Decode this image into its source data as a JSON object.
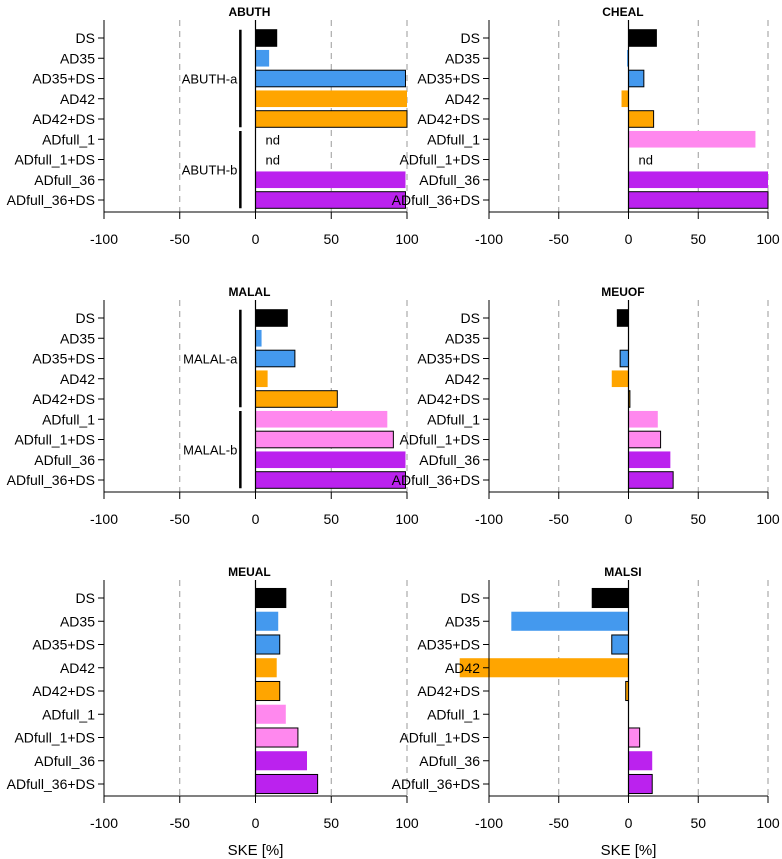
{
  "chart_data": {
    "type": "bar",
    "orientation": "horizontal",
    "xlabel": "SKE [%]",
    "xlim_left": [
      -100,
      100
    ],
    "xlim_right": [
      -100,
      100
    ],
    "xticks": [
      -100,
      -50,
      0,
      50,
      100
    ],
    "xtick_labels": [
      "-100",
      "-50",
      "0",
      "50",
      "100"
    ],
    "grid": "dashed vertical lines at -100, -50, 50, 100",
    "colors": {
      "DS": "#000000",
      "AD35": "#4499ee",
      "AD35+DS": "#4499ee",
      "AD42": "#ffa500",
      "AD42+DS": "#ffa500",
      "ADfull_1": "#ff88ee",
      "ADfull_1+DS": "#ff88ee",
      "ADfull_36": "#bb22ee",
      "ADfull_36+DS": "#bb22ee"
    },
    "categories": [
      "DS",
      "AD35",
      "AD35+DS",
      "AD42",
      "AD42+DS",
      "ADfull_1",
      "ADfull_1+DS",
      "ADfull_36",
      "ADfull_36+DS"
    ],
    "panels": [
      {
        "title": "ABUTH",
        "values": [
          14,
          9,
          99,
          100,
          100,
          null,
          null,
          99,
          99
        ],
        "bar_labels": [
          null,
          null,
          null,
          null,
          null,
          "nd",
          "nd",
          null,
          null
        ],
        "brackets": [
          {
            "label": "ABUTH-a",
            "from": 0,
            "to": 4
          },
          {
            "label": "ABUTH-b",
            "from": 5,
            "to": 8
          }
        ]
      },
      {
        "title": "CHEAL",
        "values": [
          20,
          -1,
          11,
          -5,
          18,
          91,
          null,
          100,
          100
        ],
        "bar_labels": [
          null,
          null,
          null,
          null,
          null,
          null,
          "nd",
          null,
          null
        ],
        "brackets": []
      },
      {
        "title": "MALAL",
        "values": [
          21,
          4,
          26,
          8,
          54,
          87,
          91,
          99,
          99
        ],
        "bar_labels": [
          null,
          null,
          null,
          null,
          null,
          null,
          null,
          null,
          null
        ],
        "brackets": [
          {
            "label": "MALAL-a",
            "from": 0,
            "to": 4
          },
          {
            "label": "MALAL-b",
            "from": 5,
            "to": 8
          }
        ]
      },
      {
        "title": "MEUOF",
        "values": [
          -8,
          0,
          -6,
          -12,
          1,
          21,
          23,
          30,
          32
        ],
        "bar_labels": [
          null,
          null,
          null,
          null,
          null,
          null,
          null,
          null,
          null
        ],
        "brackets": []
      },
      {
        "title": "MEUAL",
        "values": [
          20,
          15,
          16,
          14,
          16,
          20,
          28,
          34,
          41
        ],
        "bar_labels": [
          null,
          null,
          null,
          null,
          null,
          null,
          null,
          null,
          null
        ],
        "brackets": []
      },
      {
        "title": "MALSI",
        "values": [
          -26,
          -84,
          -12,
          -121,
          -2,
          0,
          8,
          17,
          17
        ],
        "bar_labels": [
          null,
          null,
          null,
          null,
          null,
          null,
          null,
          null,
          null
        ],
        "brackets": []
      }
    ]
  }
}
